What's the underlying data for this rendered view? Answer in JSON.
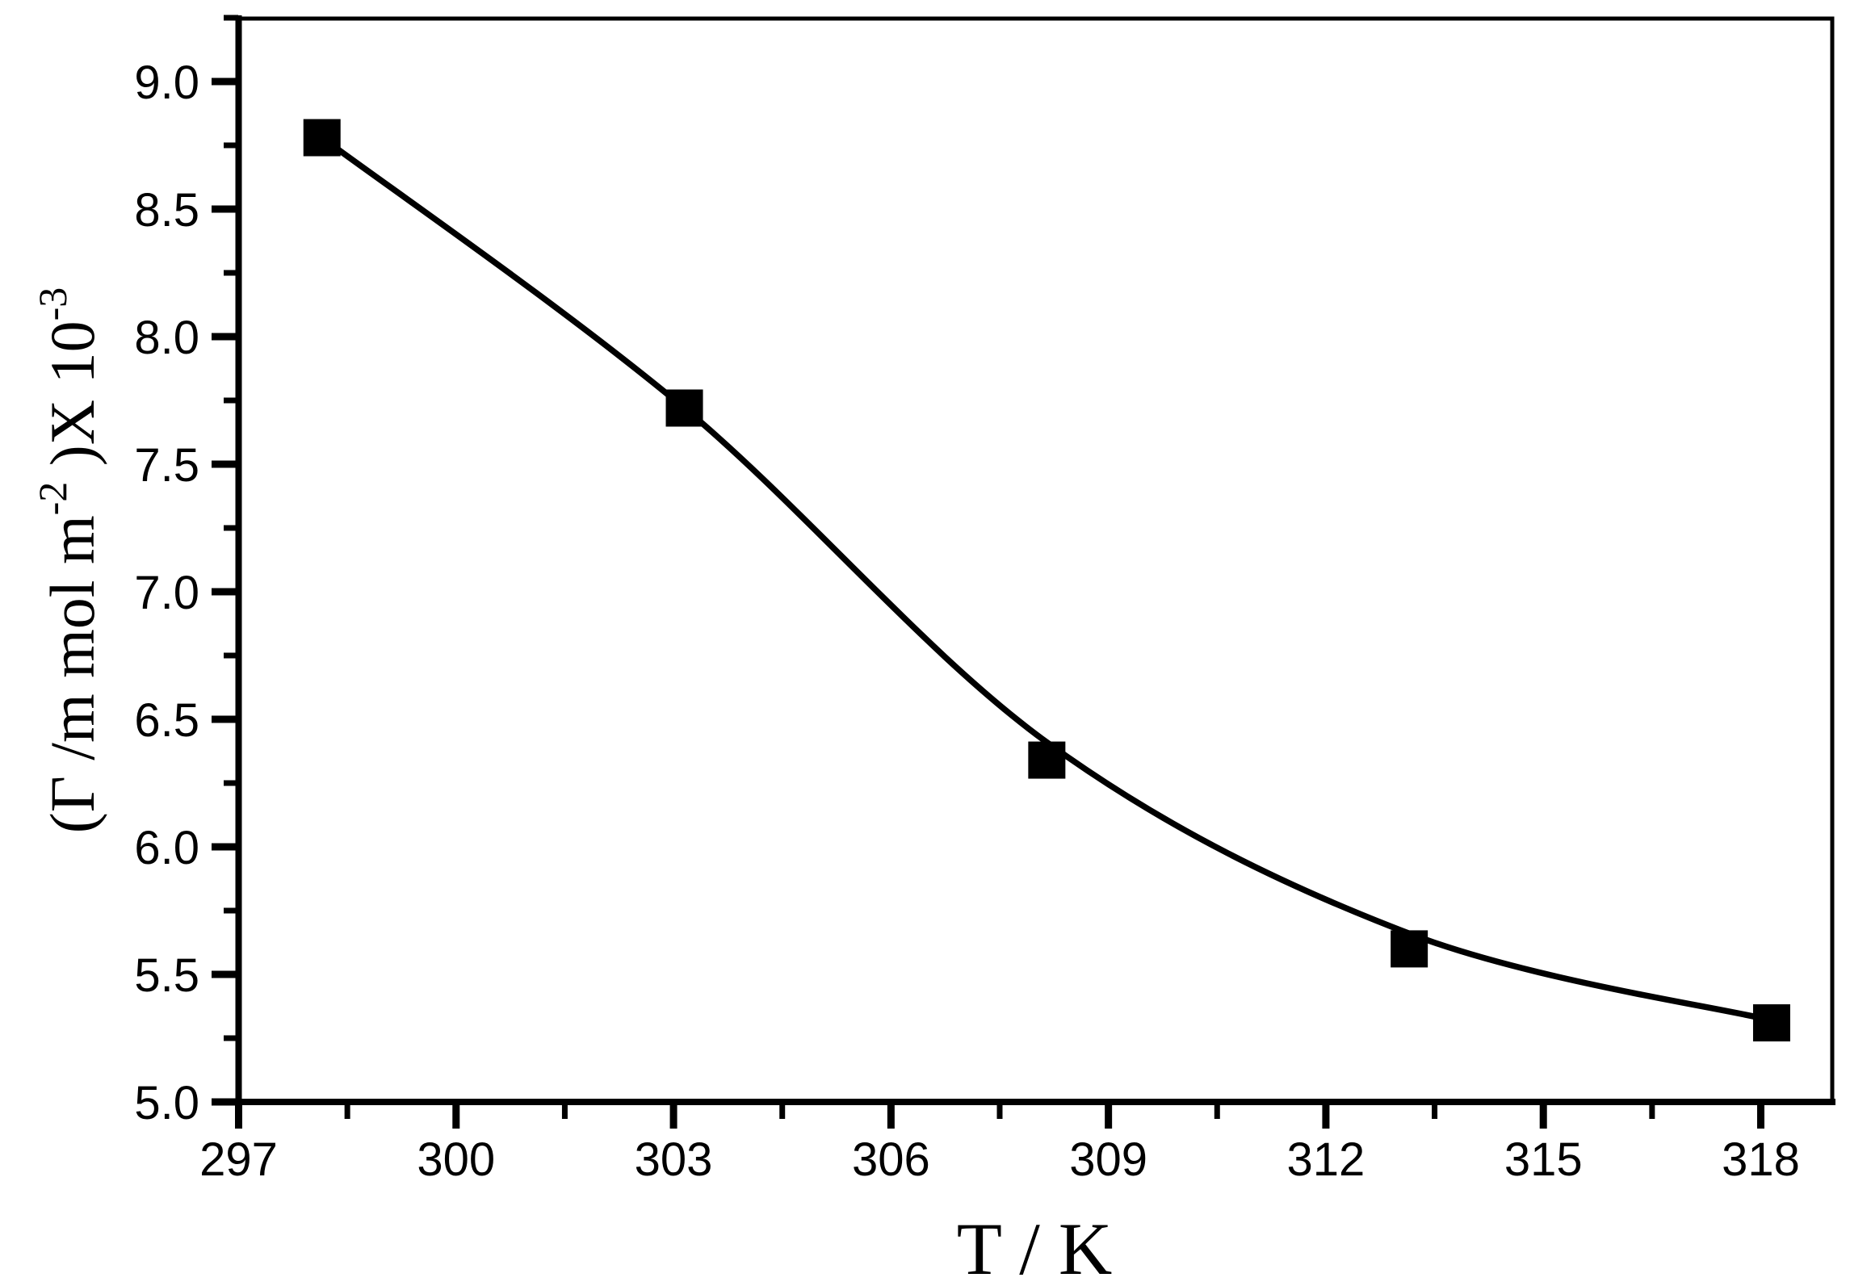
{
  "figure": {
    "background": "#ffffff",
    "ink_color": "#000000",
    "description": "Scatter plot of surface excess concentration versus temperature with a fitted exponential-decay curve, black squares on white, Origin-style frame with outward ticks"
  },
  "chart_data": {
    "type": "scatter",
    "title": "",
    "xlabel": "T / K",
    "ylabel": "(Γ /m mol m⁻²)X 10⁻³",
    "ylabel_parts": {
      "pre": "(Γ /m mol m",
      "sup1": "-2",
      "mid": " )X 10",
      "sup2": "-3"
    },
    "series": [
      {
        "name": "surface-excess-vs-temperature",
        "marker": "filled-square",
        "color": "#000000",
        "points": [
          {
            "x": 298.15,
            "y": 8.78
          },
          {
            "x": 303.15,
            "y": 7.72
          },
          {
            "x": 308.15,
            "y": 6.34
          },
          {
            "x": 313.15,
            "y": 5.6
          },
          {
            "x": 318.15,
            "y": 5.31
          }
        ]
      }
    ],
    "fit_curve": {
      "name": "fitted-decay-curve",
      "color": "#000000",
      "points": [
        [
          298.15,
          8.78
        ],
        [
          303.15,
          7.72
        ],
        [
          308.15,
          6.41
        ],
        [
          313.15,
          5.66
        ],
        [
          318.15,
          5.32
        ]
      ]
    },
    "xlim": [
      297,
      319
    ],
    "ylim": [
      5.0,
      9.25
    ],
    "x_major_ticks": [
      297,
      300,
      303,
      306,
      309,
      312,
      315,
      318
    ],
    "x_tick_labels": [
      "297",
      "300",
      "303",
      "306",
      "309",
      "312",
      "315",
      "318"
    ],
    "x_minor_ticks": [
      298.5,
      301.5,
      304.5,
      307.5,
      310.5,
      313.5,
      316.5
    ],
    "y_major_ticks": [
      5.0,
      5.5,
      6.0,
      6.5,
      7.0,
      7.5,
      8.0,
      8.5,
      9.0
    ],
    "y_tick_labels": [
      "5.0",
      "5.5",
      "6.0",
      "6.5",
      "7.0",
      "7.5",
      "8.0",
      "8.5",
      "9.0"
    ],
    "y_minor_ticks": [
      5.25,
      5.75,
      6.25,
      6.75,
      7.25,
      7.75,
      8.25,
      8.75,
      9.25
    ],
    "grid": false,
    "legend": "none"
  }
}
